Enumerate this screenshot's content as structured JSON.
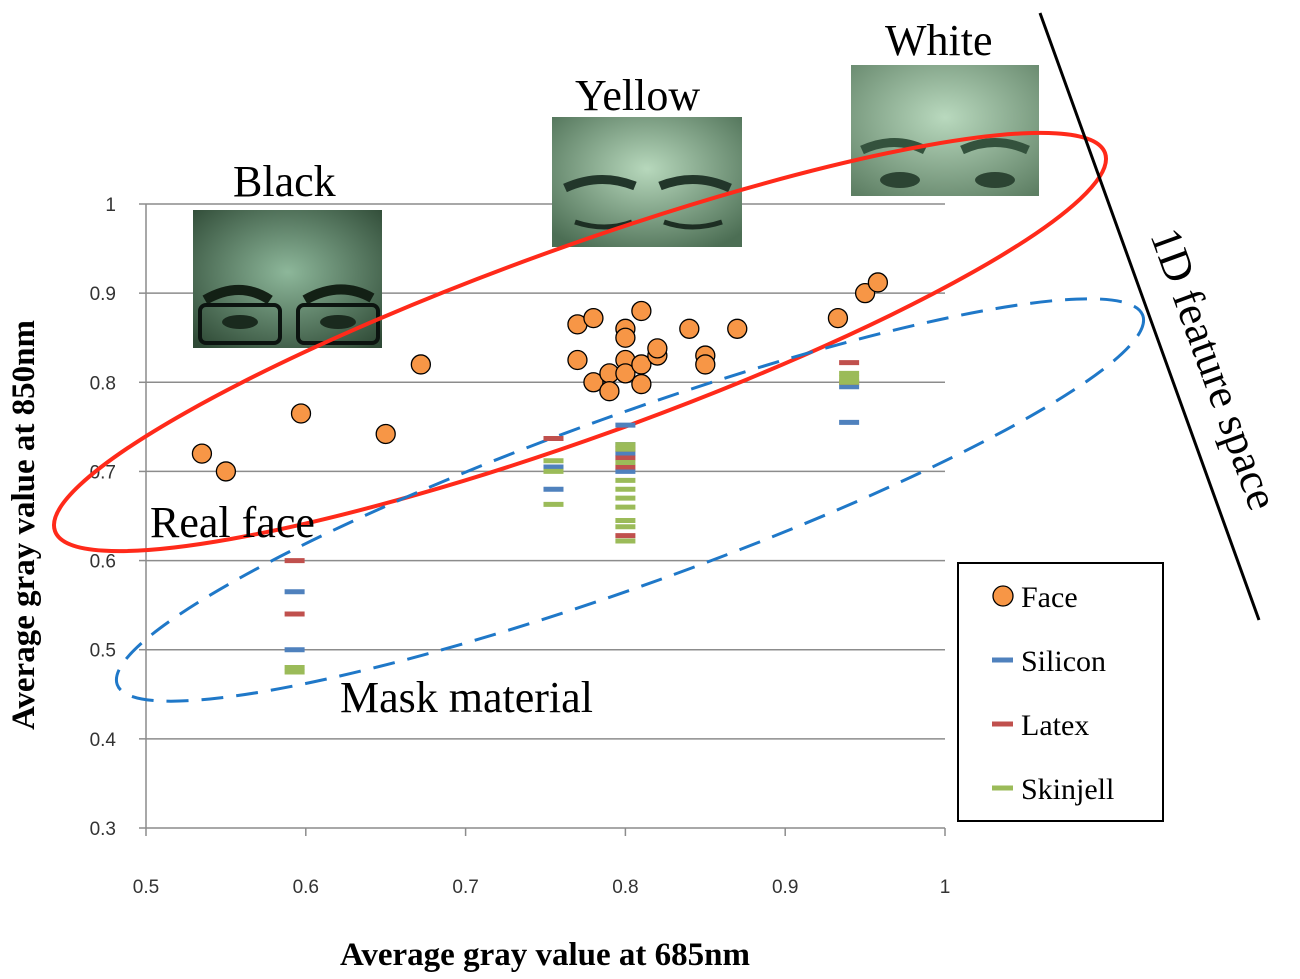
{
  "chart_data": {
    "type": "scatter",
    "title": "",
    "xlabel": "Average gray value at 685nm",
    "ylabel": "Average gray value at 850nm",
    "xlim": [
      0.5,
      1.0
    ],
    "ylim": [
      0.3,
      1.0
    ],
    "x_ticks": [
      "0.5",
      "0.6",
      "0.7",
      "0.8",
      "0.9",
      "1"
    ],
    "y_ticks": [
      "0.3",
      "0.4",
      "0.5",
      "0.6",
      "0.7",
      "0.8",
      "0.9",
      "1"
    ],
    "grid": "horizontal",
    "legend_position": "bottom-right",
    "series": [
      {
        "name": "Face",
        "marker": "circle",
        "color": "#F79646",
        "points": [
          [
            0.535,
            0.72
          ],
          [
            0.55,
            0.7
          ],
          [
            0.597,
            0.765
          ],
          [
            0.65,
            0.742
          ],
          [
            0.672,
            0.82
          ],
          [
            0.77,
            0.865
          ],
          [
            0.78,
            0.872
          ],
          [
            0.77,
            0.825
          ],
          [
            0.78,
            0.8
          ],
          [
            0.79,
            0.81
          ],
          [
            0.79,
            0.79
          ],
          [
            0.8,
            0.86
          ],
          [
            0.8,
            0.85
          ],
          [
            0.8,
            0.825
          ],
          [
            0.8,
            0.81
          ],
          [
            0.81,
            0.88
          ],
          [
            0.81,
            0.82
          ],
          [
            0.81,
            0.798
          ],
          [
            0.82,
            0.83
          ],
          [
            0.82,
            0.838
          ],
          [
            0.84,
            0.86
          ],
          [
            0.85,
            0.83
          ],
          [
            0.85,
            0.82
          ],
          [
            0.87,
            0.86
          ],
          [
            0.933,
            0.872
          ],
          [
            0.95,
            0.9
          ],
          [
            0.958,
            0.912
          ]
        ]
      },
      {
        "name": "Silicon",
        "marker": "dash",
        "color": "#4F81BD",
        "points": [
          [
            0.593,
            0.565
          ],
          [
            0.593,
            0.5
          ],
          [
            0.755,
            0.705
          ],
          [
            0.755,
            0.68
          ],
          [
            0.8,
            0.752
          ],
          [
            0.8,
            0.73
          ],
          [
            0.8,
            0.72
          ],
          [
            0.8,
            0.7
          ],
          [
            0.94,
            0.795
          ],
          [
            0.94,
            0.755
          ]
        ]
      },
      {
        "name": "Latex",
        "marker": "dash",
        "color": "#C0504D",
        "points": [
          [
            0.593,
            0.6
          ],
          [
            0.593,
            0.54
          ],
          [
            0.755,
            0.737
          ],
          [
            0.8,
            0.725
          ],
          [
            0.8,
            0.715
          ],
          [
            0.8,
            0.705
          ],
          [
            0.8,
            0.628
          ],
          [
            0.94,
            0.822
          ],
          [
            0.94,
            0.8
          ]
        ]
      },
      {
        "name": "Skinjell",
        "marker": "dash",
        "color": "#9BBB59",
        "points": [
          [
            0.593,
            0.48
          ],
          [
            0.593,
            0.475
          ],
          [
            0.755,
            0.712
          ],
          [
            0.755,
            0.7
          ],
          [
            0.755,
            0.663
          ],
          [
            0.8,
            0.73
          ],
          [
            0.8,
            0.725
          ],
          [
            0.8,
            0.71
          ],
          [
            0.8,
            0.69
          ],
          [
            0.8,
            0.68
          ],
          [
            0.8,
            0.67
          ],
          [
            0.8,
            0.66
          ],
          [
            0.8,
            0.645
          ],
          [
            0.8,
            0.638
          ],
          [
            0.8,
            0.622
          ],
          [
            0.94,
            0.81
          ],
          [
            0.94,
            0.805
          ],
          [
            0.94,
            0.8
          ]
        ]
      }
    ],
    "annotations": {
      "black": "Black",
      "yellow": "Yellow",
      "white": "White",
      "real_face": "Real face",
      "mask_material": "Mask material",
      "feature_space": "1D feature space"
    },
    "colors": {
      "real_face_ellipse": "#FF2A1A",
      "mask_ellipse": "#1F78C8",
      "feature_line": "#000000",
      "gridline": "#8C8C8C"
    }
  }
}
